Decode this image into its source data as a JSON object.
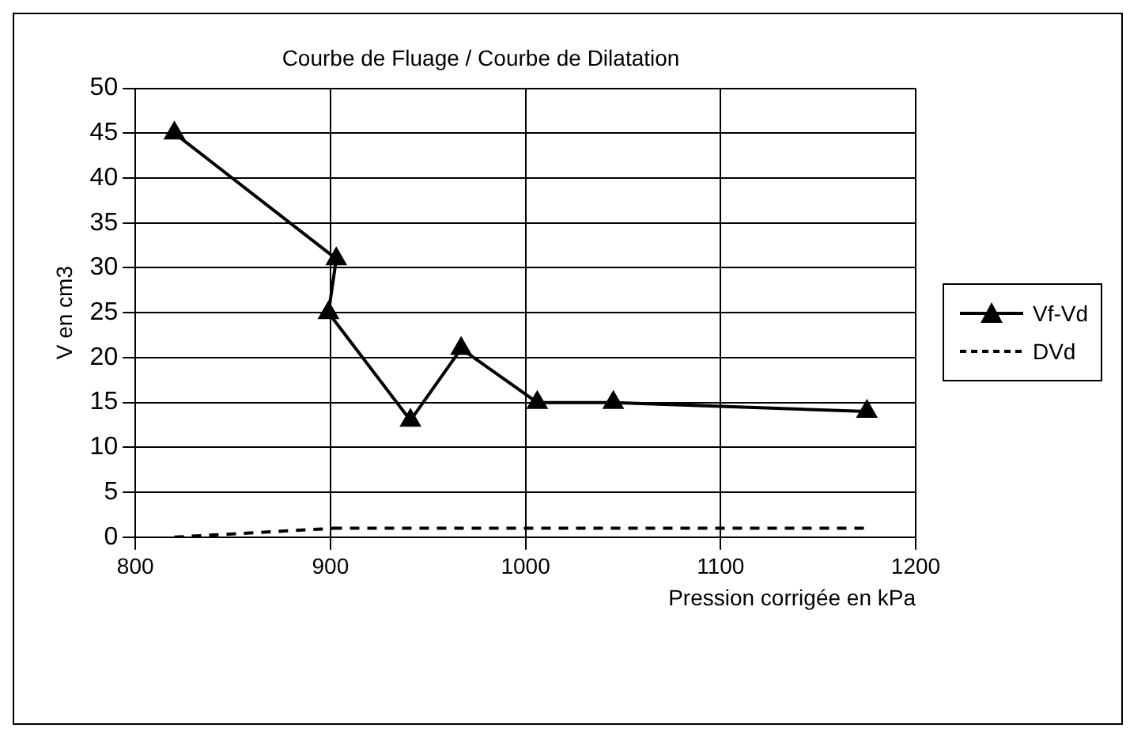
{
  "chart_data": {
    "type": "line",
    "title": "Courbe de Fluage / Courbe de Dilatation",
    "xlabel": "Pression corrigée en kPa",
    "ylabel": "V en cm3",
    "x": [
      820,
      903,
      899,
      941,
      967,
      1006,
      1045,
      1175
    ],
    "series": [
      {
        "name": "Vf-Vd",
        "color": "#000000",
        "values": [
          45,
          31,
          25,
          13,
          21,
          15,
          15,
          14
        ],
        "marker": "triangle",
        "line_style": "solid"
      },
      {
        "name": "DVd",
        "color": "#000000",
        "values": [
          0,
          1,
          1,
          1,
          1,
          1,
          1,
          1
        ],
        "marker": "none",
        "line_style": "dashed"
      }
    ],
    "xlim": [
      800,
      1200
    ],
    "xticks": [
      800,
      900,
      1000,
      1100,
      1200
    ],
    "ylim": [
      0,
      50
    ],
    "yticks": [
      0,
      5,
      10,
      15,
      20,
      25,
      30,
      35,
      40,
      45,
      50
    ],
    "grid": true,
    "legend": "right"
  }
}
